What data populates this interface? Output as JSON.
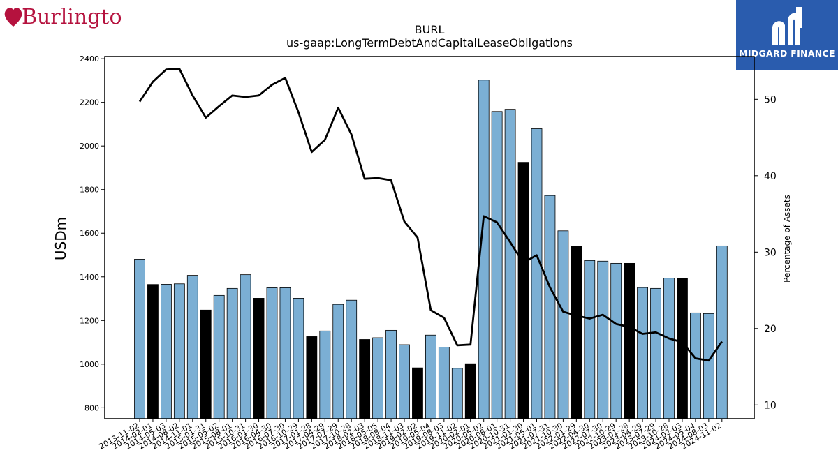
{
  "brand_left": {
    "name": "Burlington"
  },
  "brand_right": {
    "name": "MIDGARD FINANCE"
  },
  "chart_data": {
    "type": "bar",
    "title": "BURL",
    "subtitle": "us-gaap:LongTermDebtAndCapitalLeaseObligations",
    "ylabel": "USDm",
    "y2label": "Percentage of Assets",
    "ylim": [
      750,
      2410
    ],
    "y2lim": [
      8.2,
      55.6
    ],
    "yticks": [
      800,
      1000,
      1200,
      1400,
      1600,
      1800,
      2000,
      2200,
      2400
    ],
    "y2ticks": [
      10,
      20,
      30,
      40,
      50
    ],
    "colors": {
      "bar": "#7bafd4",
      "bar_highlight": "#000000",
      "line": "#000000"
    },
    "categories": [
      "2013-11-02",
      "2014-02-01",
      "2014-05-03",
      "2014-08-02",
      "2014-11-01",
      "2015-01-31",
      "2015-05-02",
      "2015-08-01",
      "2015-10-31",
      "2016-01-30",
      "2016-04-30",
      "2016-07-30",
      "2016-10-29",
      "2017-01-28",
      "2017-04-29",
      "2017-07-29",
      "2017-10-28",
      "2018-02-03",
      "2018-05-05",
      "2018-08-04",
      "2018-11-03",
      "2019-02-02",
      "2019-05-04",
      "2019-08-03",
      "2019-11-02",
      "2020-02-01",
      "2020-05-02",
      "2020-08-01",
      "2020-10-31",
      "2021-01-30",
      "2021-05-01",
      "2021-07-31",
      "2021-10-30",
      "2022-01-29",
      "2022-04-30",
      "2022-07-30",
      "2022-10-29",
      "2023-01-28",
      "2023-04-29",
      "2023-07-29",
      "2023-10-28",
      "2024-02-03",
      "2024-05-04",
      "2024-08-03",
      "2024-11-02"
    ],
    "series": [
      {
        "type": "bar",
        "values": [
          1481,
          1365,
          1366,
          1368,
          1407,
          1248,
          1315,
          1347,
          1410,
          1302,
          1350,
          1350,
          1302,
          1126,
          1152,
          1274,
          1293,
          1113,
          1121,
          1155,
          1089,
          983,
          1133,
          1078,
          981,
          1002,
          2302,
          2158,
          2168,
          1925,
          2079,
          1773,
          1611,
          1539,
          1475,
          1472,
          1462,
          1462,
          1351,
          1347,
          1394,
          1394,
          1235,
          1232,
          1542
        ],
        "highlight": [
          false,
          true,
          false,
          false,
          false,
          true,
          false,
          false,
          false,
          true,
          false,
          false,
          false,
          true,
          false,
          false,
          false,
          true,
          false,
          false,
          false,
          true,
          false,
          false,
          false,
          true,
          false,
          false,
          false,
          true,
          false,
          false,
          false,
          true,
          false,
          false,
          false,
          true,
          false,
          false,
          false,
          true,
          false,
          false,
          false
        ]
      },
      {
        "type": "line",
        "axis": "right",
        "values": [
          49.7,
          52.3,
          53.9,
          54.0,
          50.5,
          47.6,
          49.1,
          50.5,
          50.3,
          50.5,
          51.9,
          52.8,
          48.3,
          43.1,
          44.7,
          48.9,
          45.4,
          39.6,
          39.7,
          39.4,
          34.0,
          31.9,
          22.4,
          21.4,
          17.8,
          17.9,
          34.7,
          33.9,
          31.3,
          28.6,
          29.6,
          25.4,
          22.2,
          21.7,
          21.3,
          21.8,
          20.6,
          20.2,
          19.3,
          19.5,
          18.7,
          18.2,
          16.1,
          15.8,
          18.3
        ]
      }
    ],
    "grid": false
  }
}
